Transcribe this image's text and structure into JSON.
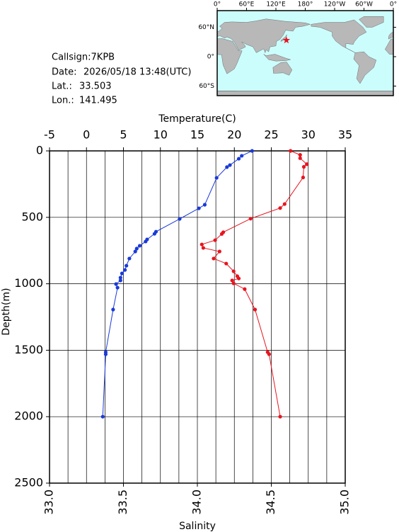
{
  "chart_data": {
    "type": "profile",
    "x2label": "Temperature(C)",
    "xlabel": "Salinity",
    "ylabel": "Depth(m)",
    "x2lim": [
      -5,
      35
    ],
    "x2ticks": [
      -5,
      0,
      5,
      10,
      15,
      20,
      25,
      30,
      35
    ],
    "x2grid": [
      -2.5,
      2.5,
      7.5,
      12.5,
      17.5,
      22.5,
      27.5,
      32.5
    ],
    "xlim": [
      33,
      35
    ],
    "xticks": [
      {
        "value": 33,
        "label": "33.0"
      },
      33.5,
      {
        "value": 34,
        "label": "34.0"
      },
      34.5,
      {
        "value": 35,
        "label": "35.0"
      }
    ],
    "ylim": [
      0,
      2500
    ],
    "y_inverted": true,
    "yticks": [
      0,
      500,
      1000,
      1500,
      2000,
      2500
    ],
    "grid": true,
    "series": [
      {
        "axis": "x2",
        "color": "#e8141e",
        "x": [
          27.6,
          28.9,
          28.9,
          29.8,
          29.4,
          29.3,
          26.8,
          26.2,
          22.2,
          18.5,
          18.3,
          17.4,
          15.6,
          15.8,
          18.0,
          17.2,
          18.9,
          19.9,
          20.4,
          20.6,
          19.7,
          19.9,
          21.4,
          22.8,
          24.5,
          24.7,
          26.2
        ],
        "y": [
          0,
          30,
          55,
          100,
          120,
          200,
          400,
          430,
          510,
          612,
          625,
          672,
          704,
          730,
          757,
          810,
          848,
          906,
          943,
          960,
          975,
          997,
          1040,
          1194,
          1514,
          1530,
          2000
        ]
      },
      {
        "axis": "x",
        "color": "#1a3ad8",
        "x": [
          34.37,
          34.3,
          34.28,
          34.22,
          34.2,
          34.13,
          34.05,
          34.01,
          33.88,
          33.72,
          33.71,
          33.66,
          33.65,
          33.61,
          33.59,
          33.58,
          33.54,
          33.52,
          33.51,
          33.49,
          33.48,
          33.48,
          33.45,
          33.46,
          33.43,
          33.38,
          33.38,
          33.36
        ],
        "y": [
          0,
          37,
          59,
          107,
          122,
          203,
          405,
          432,
          512,
          608,
          624,
          666,
          682,
          714,
          735,
          757,
          810,
          864,
          896,
          922,
          954,
          975,
          1002,
          1029,
          1194,
          1514,
          1530,
          2000
        ]
      }
    ]
  },
  "info": {
    "callsign": "Callsign:7KPB",
    "date_label": "Date:",
    "date": "2026/05/18 13:48(UTC)",
    "lat_label": "Lat.:",
    "lat": 33.503,
    "lon_label": "Lon.:",
    "lon": 141.495
  },
  "map": {
    "lon_labels": [
      "0°",
      "60°E",
      "120°E",
      "180°",
      "120°W",
      "60°W",
      "0°"
    ],
    "lat_labels": [
      "60°N",
      "0°",
      "60°S"
    ],
    "marker_color": "#e8141e"
  }
}
